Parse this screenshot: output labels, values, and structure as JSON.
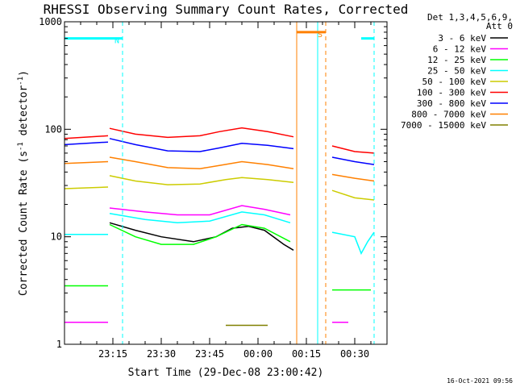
{
  "chart_data": {
    "type": "line",
    "title": "RHESSI Observing Summary Count Rates, Corrected",
    "xlabel": "Start Time (29-Dec-08 23:00:42)",
    "ylabel_main": "Corrected Count Rate (s",
    "ylabel_sup1": "-1",
    "ylabel_mid": " detector",
    "ylabel_sup2": "-1",
    "ylabel_end": ")",
    "yscale": "log",
    "ylim": [
      1,
      1000
    ],
    "yticks": [
      1,
      10,
      100,
      1000
    ],
    "yticklabels": [
      "1",
      "10",
      "100",
      "1000"
    ],
    "xlim_minutes": [
      0,
      100
    ],
    "xticks_minutes": [
      15,
      30,
      45,
      60,
      75,
      90
    ],
    "xticklabels": [
      "23:15",
      "23:30",
      "23:45",
      "00:00",
      "00:15",
      "00:30"
    ],
    "legend_title": [
      "Det 1,3,4,5,6,9,",
      "Att 0"
    ],
    "legend_placement": "right-outside",
    "series": [
      {
        "name": "3 - 6 keV",
        "color": "#000000",
        "segments": [
          [
            [
              14,
              13.5
            ],
            [
              22,
              11.5
            ],
            [
              30,
              10
            ],
            [
              40,
              9
            ],
            [
              47,
              10
            ],
            [
              52,
              12
            ],
            [
              57,
              12.5
            ],
            [
              62,
              11.5
            ],
            [
              68,
              8.5
            ],
            [
              71,
              7.5
            ]
          ]
        ]
      },
      {
        "name": "6 - 12 keV",
        "color": "#ff00ff",
        "segments": [
          [
            [
              0,
              1.6
            ],
            [
              13.5,
              1.6
            ]
          ],
          [
            [
              14,
              18.5
            ],
            [
              25,
              17
            ],
            [
              35,
              16
            ],
            [
              45,
              16
            ],
            [
              55,
              19.5
            ],
            [
              62,
              18
            ],
            [
              70,
              16
            ]
          ],
          [
            [
              83,
              1.6
            ],
            [
              88,
              1.6
            ]
          ]
        ]
      },
      {
        "name": "12 - 25 keV",
        "color": "#00ff00",
        "segments": [
          [
            [
              0,
              3.5
            ],
            [
              13.5,
              3.5
            ]
          ],
          [
            [
              14,
              13
            ],
            [
              22,
              10
            ],
            [
              30,
              8.5
            ],
            [
              40,
              8.5
            ],
            [
              47,
              10
            ],
            [
              55,
              13
            ],
            [
              62,
              12
            ],
            [
              70,
              9
            ]
          ],
          [
            [
              83,
              3.2
            ],
            [
              95,
              3.2
            ]
          ]
        ]
      },
      {
        "name": "25 - 50 keV",
        "color": "#00ffff",
        "segments": [
          [
            [
              0,
              10.5
            ],
            [
              13.5,
              10.5
            ]
          ],
          [
            [
              14,
              16.5
            ],
            [
              25,
              14.5
            ],
            [
              35,
              13.5
            ],
            [
              45,
              14
            ],
            [
              55,
              17
            ],
            [
              62,
              16
            ],
            [
              70,
              13.5
            ]
          ],
          [
            [
              83,
              11
            ],
            [
              90,
              10
            ],
            [
              92,
              7
            ],
            [
              94,
              9
            ],
            [
              96,
              11
            ]
          ]
        ]
      },
      {
        "name": "50 - 100 keV",
        "color": "#cccc00",
        "segments": [
          [
            [
              0,
              28
            ],
            [
              13.5,
              29
            ]
          ],
          [
            [
              14,
              37
            ],
            [
              22,
              33
            ],
            [
              32,
              30.5
            ],
            [
              42,
              31
            ],
            [
              50,
              34
            ],
            [
              55,
              35.5
            ],
            [
              63,
              34
            ],
            [
              71,
              32
            ]
          ],
          [
            [
              83,
              27
            ],
            [
              90,
              23
            ],
            [
              96,
              22
            ]
          ]
        ]
      },
      {
        "name": "100 - 300 keV",
        "color": "#ff0000",
        "segments": [
          [
            [
              0,
              82
            ],
            [
              13.5,
              87
            ]
          ],
          [
            [
              14,
              102
            ],
            [
              22,
              90
            ],
            [
              32,
              84
            ],
            [
              42,
              87
            ],
            [
              48,
              95
            ],
            [
              55,
              103
            ],
            [
              63,
              95
            ],
            [
              71,
              85
            ]
          ],
          [
            [
              83,
              70
            ],
            [
              90,
              62
            ],
            [
              96,
              60
            ]
          ]
        ]
      },
      {
        "name": "300 - 800 keV",
        "color": "#0000ff",
        "segments": [
          [
            [
              0,
              72
            ],
            [
              13.5,
              76
            ]
          ],
          [
            [
              14,
              82
            ],
            [
              22,
              72
            ],
            [
              32,
              63
            ],
            [
              42,
              62
            ],
            [
              48,
              67
            ],
            [
              55,
              74
            ],
            [
              63,
              71
            ],
            [
              71,
              66
            ]
          ],
          [
            [
              83,
              55
            ],
            [
              90,
              50
            ],
            [
              96,
              47
            ]
          ]
        ]
      },
      {
        "name": "800 - 7000 keV",
        "color": "#ff8000",
        "segments": [
          [
            [
              0,
              48
            ],
            [
              13.5,
              50
            ]
          ],
          [
            [
              14,
              55
            ],
            [
              22,
              50
            ],
            [
              32,
              44
            ],
            [
              42,
              43
            ],
            [
              48,
              46
            ],
            [
              55,
              50
            ],
            [
              63,
              47
            ],
            [
              71,
              43
            ]
          ],
          [
            [
              83,
              38
            ],
            [
              90,
              35
            ],
            [
              96,
              33
            ]
          ]
        ]
      },
      {
        "name": "7000 - 15000 keV",
        "color": "#808000",
        "segments": [
          [
            [
              50,
              1.5
            ],
            [
              63,
              1.5
            ]
          ]
        ]
      }
    ],
    "attenuator_bar": {
      "label": "N",
      "color": "#00ffff",
      "y": 700,
      "segments": [
        [
          0,
          18
        ],
        [
          92,
          96
        ]
      ]
    },
    "saa_bar": {
      "label": "S",
      "color": "#ff8000",
      "y": 800,
      "segments": [
        [
          72,
          81
        ]
      ]
    },
    "vlines": [
      {
        "x": 18,
        "color": "#00ffff",
        "style": "dashed"
      },
      {
        "x": 96,
        "color": "#00ffff",
        "style": "dashed"
      },
      {
        "x": 72,
        "color": "#ff8000",
        "style": "solid"
      },
      {
        "x": 78.5,
        "color": "#00ffff",
        "style": "solid"
      },
      {
        "x": 81,
        "color": "#ff8000",
        "style": "dashed"
      }
    ],
    "timestamp": "16-Oct-2021 09:56"
  }
}
